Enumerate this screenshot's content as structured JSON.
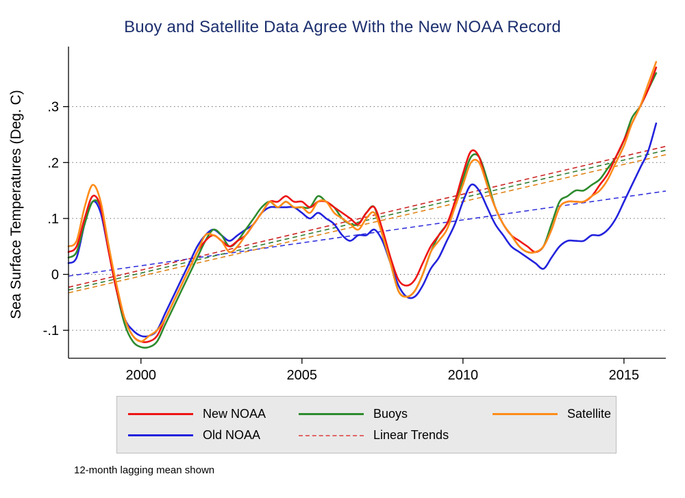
{
  "chart_data": {
    "type": "line",
    "title": "Buoy and Satellite Data Agree With the New NOAA Record",
    "title_color": "#1c2f6e",
    "ylabel": "Sea Surface Temperatures (Deg. C)",
    "xlabel": "",
    "note": "12-month lagging mean shown",
    "grid": "horizontal-dotted",
    "legend_position": "bottom",
    "xlim": [
      1997.75,
      2016.3
    ],
    "ylim": [
      -0.15,
      0.4
    ],
    "xticks": [
      {
        "value": 2000,
        "label": "2000"
      },
      {
        "value": 2005,
        "label": "2005"
      },
      {
        "value": 2010,
        "label": "2010"
      },
      {
        "value": 2015,
        "label": "2015"
      }
    ],
    "yticks": [
      {
        "value": -0.1,
        "label": "-.1"
      },
      {
        "value": 0,
        "label": "0"
      },
      {
        "value": 0.1,
        "label": ".1"
      },
      {
        "value": 0.2,
        "label": ".2"
      },
      {
        "value": 0.3,
        "label": ".3"
      }
    ],
    "x_start": 1997.75,
    "x_step": 0.25,
    "series": [
      {
        "name": "New NOAA",
        "color": "#ee1414",
        "style": "solid",
        "values": [
          0.04,
          0.05,
          0.1,
          0.14,
          0.12,
          0.04,
          -0.03,
          -0.08,
          -0.11,
          -0.12,
          -0.12,
          -0.11,
          -0.08,
          -0.05,
          -0.02,
          0.01,
          0.04,
          0.06,
          0.07,
          0.06,
          0.05,
          0.06,
          0.07,
          0.09,
          0.11,
          0.13,
          0.13,
          0.14,
          0.13,
          0.13,
          0.12,
          0.13,
          0.13,
          0.12,
          0.11,
          0.1,
          0.09,
          0.11,
          0.12,
          0.08,
          0.03,
          -0.01,
          -0.02,
          -0.01,
          0.02,
          0.05,
          0.07,
          0.09,
          0.13,
          0.18,
          0.22,
          0.21,
          0.16,
          0.12,
          0.09,
          0.07,
          0.06,
          0.05,
          0.04,
          0.05,
          0.08,
          0.12,
          0.13,
          0.13,
          0.13,
          0.14,
          0.16,
          0.18,
          0.21,
          0.24,
          0.27,
          0.3,
          0.33,
          0.37
        ]
      },
      {
        "name": "Old NOAA",
        "color": "#2222dd",
        "style": "solid",
        "values": [
          0.02,
          0.03,
          0.09,
          0.13,
          0.11,
          0.04,
          -0.03,
          -0.08,
          -0.1,
          -0.11,
          -0.11,
          -0.1,
          -0.07,
          -0.04,
          -0.01,
          0.02,
          0.05,
          0.07,
          0.08,
          0.07,
          0.06,
          0.07,
          0.08,
          0.09,
          0.11,
          0.12,
          0.12,
          0.12,
          0.12,
          0.11,
          0.1,
          0.11,
          0.1,
          0.09,
          0.07,
          0.06,
          0.07,
          0.07,
          0.08,
          0.06,
          0.02,
          -0.02,
          -0.04,
          -0.04,
          -0.02,
          0.01,
          0.03,
          0.06,
          0.09,
          0.13,
          0.16,
          0.15,
          0.12,
          0.09,
          0.07,
          0.05,
          0.04,
          0.03,
          0.02,
          0.01,
          0.03,
          0.05,
          0.06,
          0.06,
          0.06,
          0.07,
          0.07,
          0.08,
          0.1,
          0.13,
          0.16,
          0.19,
          0.22,
          0.27
        ]
      },
      {
        "name": "Buoys",
        "color": "#2e8b2e",
        "style": "solid",
        "values": [
          0.03,
          0.04,
          0.09,
          0.13,
          0.12,
          0.05,
          -0.03,
          -0.09,
          -0.12,
          -0.13,
          -0.13,
          -0.12,
          -0.09,
          -0.06,
          -0.03,
          0.0,
          0.03,
          0.06,
          0.08,
          0.07,
          0.05,
          0.06,
          0.08,
          0.1,
          0.12,
          0.13,
          0.12,
          0.13,
          0.12,
          0.12,
          0.12,
          0.14,
          0.13,
          0.12,
          0.1,
          0.09,
          0.09,
          0.11,
          0.12,
          0.07,
          0.02,
          -0.03,
          -0.04,
          -0.03,
          0.0,
          0.04,
          0.07,
          0.09,
          0.12,
          0.17,
          0.21,
          0.21,
          0.17,
          0.12,
          0.09,
          0.07,
          0.05,
          0.04,
          0.04,
          0.05,
          0.09,
          0.13,
          0.14,
          0.15,
          0.15,
          0.16,
          0.17,
          0.19,
          0.21,
          0.24,
          0.28,
          0.3,
          0.33,
          0.36
        ]
      },
      {
        "name": "Satellite",
        "color": "#ff8c1a",
        "style": "solid",
        "values": [
          0.05,
          0.06,
          0.12,
          0.16,
          0.13,
          0.05,
          -0.02,
          -0.08,
          -0.11,
          -0.12,
          -0.11,
          -0.1,
          -0.08,
          -0.05,
          -0.02,
          0.01,
          0.04,
          0.07,
          0.07,
          0.06,
          0.04,
          0.05,
          0.07,
          0.09,
          0.11,
          0.13,
          0.12,
          0.13,
          0.12,
          0.12,
          0.11,
          0.13,
          0.13,
          0.11,
          0.1,
          0.09,
          0.08,
          0.1,
          0.11,
          0.07,
          0.02,
          -0.03,
          -0.04,
          -0.03,
          0.0,
          0.04,
          0.06,
          0.08,
          0.12,
          0.16,
          0.2,
          0.2,
          0.16,
          0.12,
          0.09,
          0.07,
          0.05,
          0.04,
          0.04,
          0.05,
          0.08,
          0.12,
          0.13,
          0.13,
          0.13,
          0.14,
          0.15,
          0.17,
          0.2,
          0.23,
          0.27,
          0.3,
          0.34,
          0.38
        ]
      }
    ],
    "trends": [
      {
        "name": "Old NOAA trend",
        "color": "#3333dd",
        "x": [
          1997.75,
          2016.3
        ],
        "y": [
          -0.003,
          0.149
        ]
      },
      {
        "name": "Satellite trend",
        "color": "#e08214",
        "x": [
          1997.75,
          2016.3
        ],
        "y": [
          -0.033,
          0.214
        ]
      },
      {
        "name": "Buoys trend",
        "color": "#2e7d32",
        "x": [
          1997.75,
          2016.3
        ],
        "y": [
          -0.028,
          0.222
        ]
      },
      {
        "name": "New NOAA trend",
        "color": "#cc2222",
        "x": [
          1997.75,
          2016.3
        ],
        "y": [
          -0.023,
          0.229
        ]
      }
    ],
    "legend": [
      {
        "label": "New NOAA",
        "color": "#ee1414",
        "dash": false
      },
      {
        "label": "Buoys",
        "color": "#2e8b2e",
        "dash": false
      },
      {
        "label": "Satellite",
        "color": "#ff8c1a",
        "dash": false
      },
      {
        "label": "Old NOAA",
        "color": "#2222dd",
        "dash": false
      },
      {
        "label": "Linear Trends",
        "color": "#e06666",
        "dash": true
      }
    ]
  }
}
